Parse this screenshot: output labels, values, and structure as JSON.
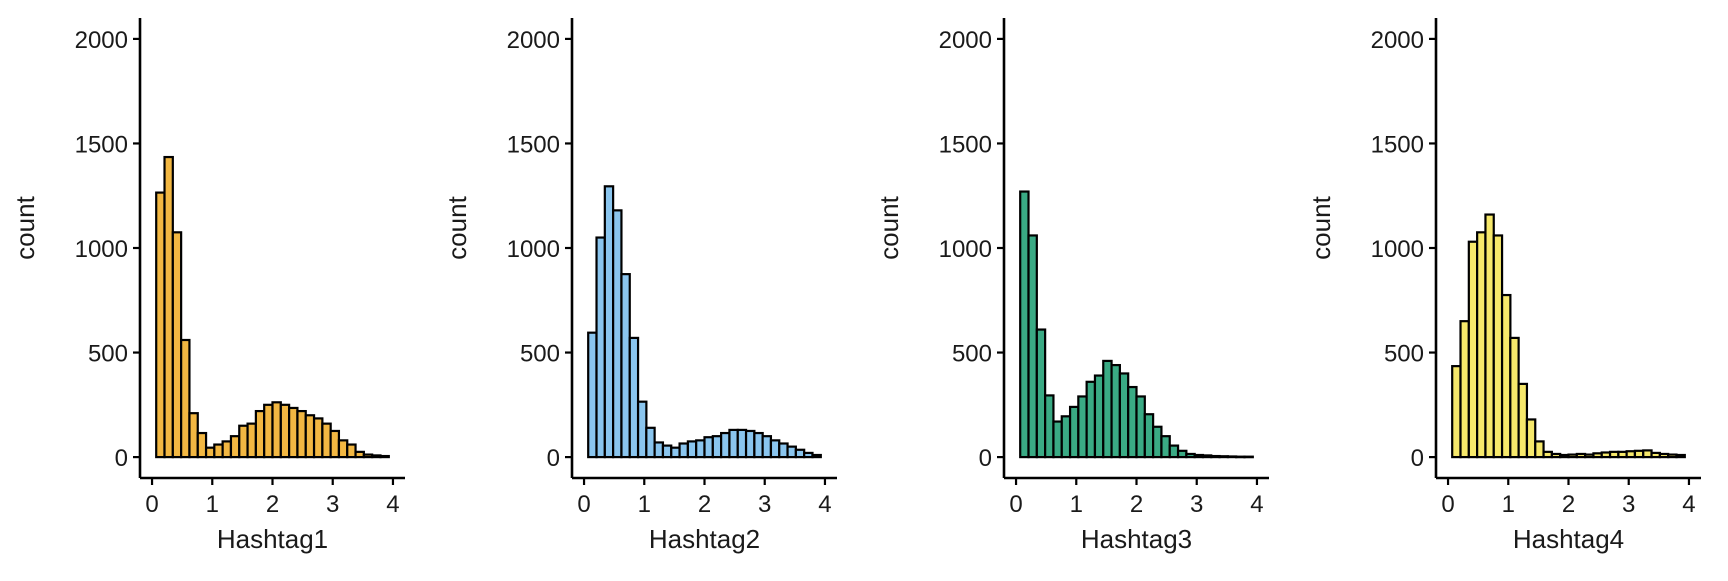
{
  "chart_data": [
    {
      "type": "bar",
      "xlabel": "Hashtag1",
      "ylabel": "count",
      "fill": "#F2B742",
      "xlim": [
        -0.2,
        4.2
      ],
      "ylim": [
        -100,
        2100
      ],
      "xticks": [
        0,
        1,
        2,
        3,
        4
      ],
      "yticks": [
        0,
        500,
        1000,
        1500,
        2000
      ],
      "bin_width": 0.1379,
      "x": [
        0.138,
        0.276,
        0.414,
        0.552,
        0.69,
        0.828,
        0.966,
        1.103,
        1.241,
        1.379,
        1.517,
        1.655,
        1.793,
        1.931,
        2.069,
        2.207,
        2.345,
        2.483,
        2.621,
        2.759,
        2.897,
        3.034,
        3.172,
        3.31,
        3.448,
        3.586,
        3.724,
        3.862
      ],
      "values": [
        1265,
        1435,
        1075,
        560,
        210,
        115,
        45,
        60,
        75,
        100,
        150,
        160,
        220,
        250,
        262,
        250,
        235,
        220,
        200,
        185,
        160,
        125,
        80,
        60,
        25,
        12,
        8,
        5
      ]
    },
    {
      "type": "bar",
      "xlabel": "Hashtag2",
      "ylabel": "count",
      "fill": "#8AC5EE",
      "xlim": [
        -0.2,
        4.2
      ],
      "ylim": [
        -100,
        2100
      ],
      "xticks": [
        0,
        1,
        2,
        3,
        4
      ],
      "yticks": [
        0,
        500,
        1000,
        1500,
        2000
      ],
      "bin_width": 0.1379,
      "x": [
        0.138,
        0.276,
        0.414,
        0.552,
        0.69,
        0.828,
        0.966,
        1.103,
        1.241,
        1.379,
        1.517,
        1.655,
        1.793,
        1.931,
        2.069,
        2.207,
        2.345,
        2.483,
        2.621,
        2.759,
        2.897,
        3.034,
        3.172,
        3.31,
        3.448,
        3.586,
        3.724,
        3.862
      ],
      "values": [
        595,
        1050,
        1295,
        1180,
        875,
        570,
        265,
        140,
        70,
        55,
        45,
        65,
        75,
        80,
        95,
        100,
        115,
        130,
        130,
        125,
        115,
        100,
        80,
        65,
        50,
        35,
        20,
        10
      ]
    },
    {
      "type": "bar",
      "xlabel": "Hashtag3",
      "ylabel": "count",
      "fill": "#3AAA84",
      "xlim": [
        -0.2,
        4.2
      ],
      "ylim": [
        -100,
        2100
      ],
      "xticks": [
        0,
        1,
        2,
        3,
        4
      ],
      "yticks": [
        0,
        500,
        1000,
        1500,
        2000
      ],
      "bin_width": 0.1379,
      "x": [
        0.138,
        0.276,
        0.414,
        0.552,
        0.69,
        0.828,
        0.966,
        1.103,
        1.241,
        1.379,
        1.517,
        1.655,
        1.793,
        1.931,
        2.069,
        2.207,
        2.345,
        2.483,
        2.621,
        2.759,
        2.897,
        3.034,
        3.172,
        3.31,
        3.448,
        3.586,
        3.724,
        3.862
      ],
      "values": [
        1270,
        1060,
        610,
        295,
        170,
        195,
        240,
        290,
        360,
        390,
        460,
        440,
        400,
        335,
        290,
        205,
        145,
        100,
        55,
        30,
        15,
        10,
        8,
        5,
        4,
        3,
        2,
        2
      ]
    },
    {
      "type": "bar",
      "xlabel": "Hashtag4",
      "ylabel": "count",
      "fill": "#F6E86B",
      "xlim": [
        -0.2,
        4.2
      ],
      "ylim": [
        -100,
        2100
      ],
      "xticks": [
        0,
        1,
        2,
        3,
        4
      ],
      "yticks": [
        0,
        500,
        1000,
        1500,
        2000
      ],
      "bin_width": 0.1379,
      "x": [
        0.138,
        0.276,
        0.414,
        0.552,
        0.69,
        0.828,
        0.966,
        1.103,
        1.241,
        1.379,
        1.517,
        1.655,
        1.793,
        1.931,
        2.069,
        2.207,
        2.345,
        2.483,
        2.621,
        2.759,
        2.897,
        3.034,
        3.172,
        3.31,
        3.448,
        3.586,
        3.724,
        3.862
      ],
      "values": [
        435,
        650,
        1030,
        1075,
        1160,
        1060,
        775,
        570,
        350,
        180,
        75,
        25,
        15,
        10,
        12,
        15,
        12,
        18,
        22,
        25,
        25,
        28,
        30,
        32,
        20,
        15,
        12,
        10
      ]
    }
  ]
}
